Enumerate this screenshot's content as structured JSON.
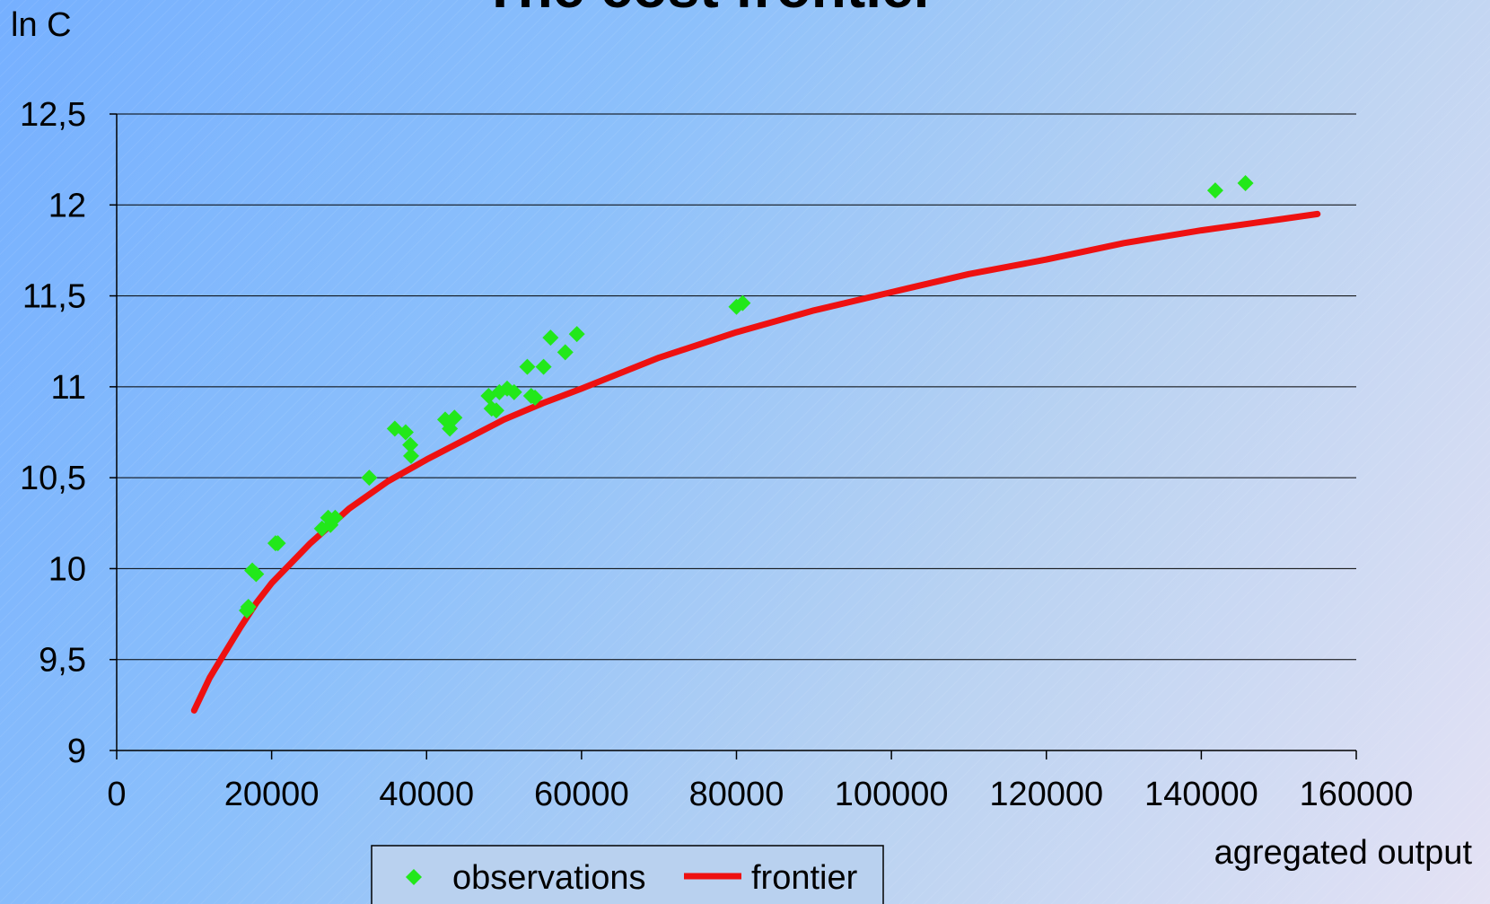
{
  "chart_data": {
    "type": "scatter",
    "title": "The cost frontier",
    "xlabel": "agregated output",
    "ylabel": "ln C",
    "xlim": [
      0,
      160000
    ],
    "ylim": [
      9,
      12.5
    ],
    "x_ticks": [
      "0",
      "20000",
      "40000",
      "60000",
      "80000",
      "100000",
      "120000",
      "140000",
      "160000"
    ],
    "y_ticks": [
      "9",
      "9,5",
      "10",
      "10,5",
      "11",
      "11,5",
      "12",
      "12,5"
    ],
    "grid": true,
    "legend_position": "bottom",
    "series": [
      {
        "name": "observations",
        "kind": "scatter",
        "color": "#22e81a",
        "marker": "diamond",
        "points": [
          [
            16800,
            9.77
          ],
          [
            17000,
            9.79
          ],
          [
            17500,
            9.99
          ],
          [
            18000,
            9.97
          ],
          [
            20500,
            10.14
          ],
          [
            20800,
            10.14
          ],
          [
            26500,
            10.22
          ],
          [
            27300,
            10.28
          ],
          [
            27600,
            10.24
          ],
          [
            28200,
            10.28
          ],
          [
            32600,
            10.5
          ],
          [
            35900,
            10.77
          ],
          [
            37300,
            10.75
          ],
          [
            37900,
            10.68
          ],
          [
            38000,
            10.62
          ],
          [
            42400,
            10.82
          ],
          [
            43000,
            10.77
          ],
          [
            43600,
            10.83
          ],
          [
            48000,
            10.95
          ],
          [
            48400,
            10.88
          ],
          [
            49000,
            10.87
          ],
          [
            49400,
            10.97
          ],
          [
            50400,
            10.99
          ],
          [
            51300,
            10.97
          ],
          [
            53000,
            11.11
          ],
          [
            53500,
            10.95
          ],
          [
            54000,
            10.94
          ],
          [
            55100,
            11.11
          ],
          [
            56000,
            11.27
          ],
          [
            57900,
            11.19
          ],
          [
            59400,
            11.29
          ],
          [
            80000,
            11.44
          ],
          [
            80800,
            11.46
          ],
          [
            141800,
            12.08
          ],
          [
            145700,
            12.12
          ]
        ]
      },
      {
        "name": "frontier",
        "kind": "line",
        "color": "#ee1111",
        "points": [
          [
            10000,
            9.22
          ],
          [
            12000,
            9.4
          ],
          [
            14000,
            9.54
          ],
          [
            16000,
            9.68
          ],
          [
            18000,
            9.81
          ],
          [
            20000,
            9.92
          ],
          [
            25000,
            10.14
          ],
          [
            30000,
            10.33
          ],
          [
            35000,
            10.48
          ],
          [
            40000,
            10.6
          ],
          [
            45000,
            10.71
          ],
          [
            50000,
            10.82
          ],
          [
            55000,
            10.91
          ],
          [
            60000,
            10.99
          ],
          [
            70000,
            11.16
          ],
          [
            80000,
            11.3
          ],
          [
            90000,
            11.42
          ],
          [
            100000,
            11.52
          ],
          [
            110000,
            11.62
          ],
          [
            120000,
            11.7
          ],
          [
            130000,
            11.79
          ],
          [
            140000,
            11.86
          ],
          [
            150000,
            11.92
          ],
          [
            155000,
            11.95
          ]
        ]
      }
    ]
  }
}
